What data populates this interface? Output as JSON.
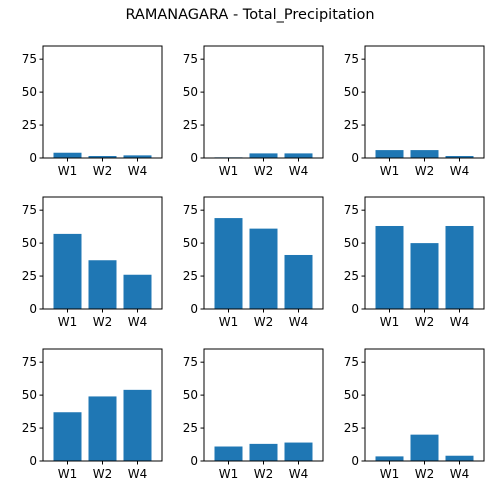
{
  "figure": {
    "title": "RAMANAGARA - Total_Precipitation"
  },
  "colors": {
    "bar": "#1f77b4",
    "axis": "#000000"
  },
  "chart_data": [
    {
      "type": "bar",
      "categories": [
        "W1",
        "W2",
        "W4"
      ],
      "values": [
        4,
        1.5,
        2
      ],
      "ylim": [
        0,
        85
      ],
      "yticks": [
        0,
        25,
        50,
        75
      ]
    },
    {
      "type": "bar",
      "categories": [
        "W1",
        "W2",
        "W4"
      ],
      "values": [
        0.5,
        3.5,
        3.5
      ],
      "ylim": [
        0,
        85
      ],
      "yticks": [
        0,
        25,
        50,
        75
      ]
    },
    {
      "type": "bar",
      "categories": [
        "W1",
        "W2",
        "W4"
      ],
      "values": [
        6,
        6,
        1.5
      ],
      "ylim": [
        0,
        85
      ],
      "yticks": [
        0,
        25,
        50,
        75
      ]
    },
    {
      "type": "bar",
      "categories": [
        "W1",
        "W2",
        "W4"
      ],
      "values": [
        57,
        37,
        26
      ],
      "ylim": [
        0,
        85
      ],
      "yticks": [
        0,
        25,
        50,
        75
      ]
    },
    {
      "type": "bar",
      "categories": [
        "W1",
        "W2",
        "W4"
      ],
      "values": [
        69,
        61,
        41
      ],
      "ylim": [
        0,
        85
      ],
      "yticks": [
        0,
        25,
        50,
        75
      ]
    },
    {
      "type": "bar",
      "categories": [
        "W1",
        "W2",
        "W4"
      ],
      "values": [
        63,
        50,
        63
      ],
      "ylim": [
        0,
        85
      ],
      "yticks": [
        0,
        25,
        50,
        75
      ]
    },
    {
      "type": "bar",
      "categories": [
        "W1",
        "W2",
        "W4"
      ],
      "values": [
        37,
        49,
        54
      ],
      "ylim": [
        0,
        85
      ],
      "yticks": [
        0,
        25,
        50,
        75
      ]
    },
    {
      "type": "bar",
      "categories": [
        "W1",
        "W2",
        "W4"
      ],
      "values": [
        11,
        13,
        14
      ],
      "ylim": [
        0,
        85
      ],
      "yticks": [
        0,
        25,
        50,
        75
      ]
    },
    {
      "type": "bar",
      "categories": [
        "W1",
        "W2",
        "W4"
      ],
      "values": [
        3.5,
        20,
        4
      ],
      "ylim": [
        0,
        85
      ],
      "yticks": [
        0,
        25,
        50,
        75
      ]
    }
  ]
}
